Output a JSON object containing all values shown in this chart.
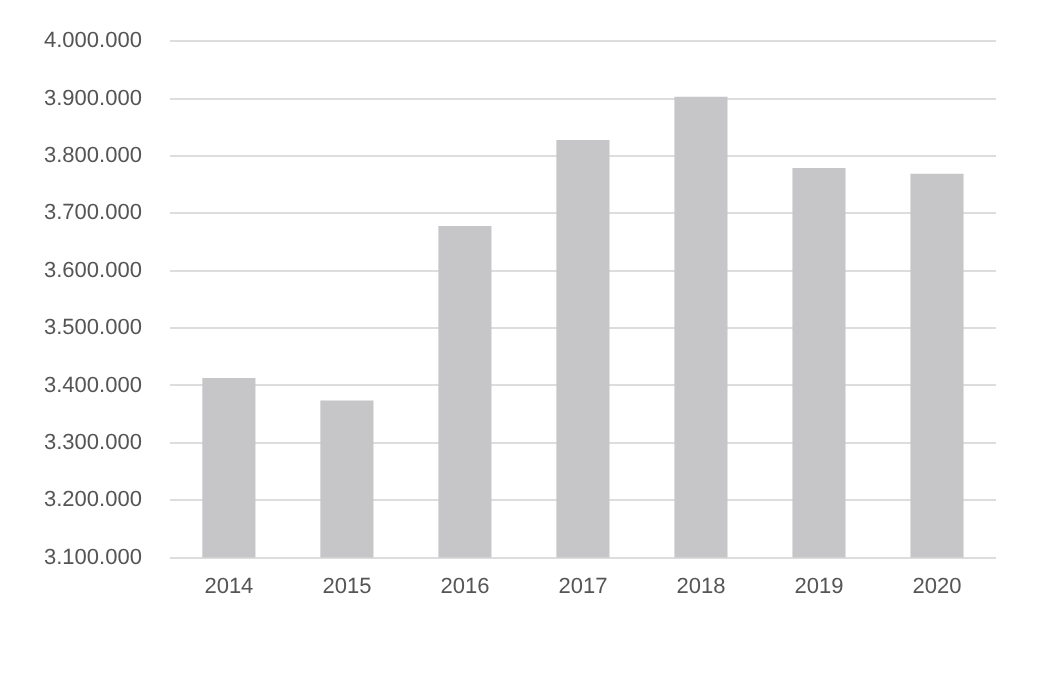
{
  "chart_data": {
    "type": "bar",
    "categories": [
      "2014",
      "2015",
      "2016",
      "2017",
      "2018",
      "2019",
      "2020"
    ],
    "values": [
      3413000,
      3374000,
      3678000,
      3828000,
      3903000,
      3779000,
      3769000
    ],
    "color": "#c6c6c8",
    "ylim": [
      3100000,
      4000000
    ],
    "yticks": [
      {
        "value": 3100000,
        "label": "3.100.000"
      },
      {
        "value": 3200000,
        "label": "3.200.000"
      },
      {
        "value": 3300000,
        "label": "3.300.000"
      },
      {
        "value": 3400000,
        "label": "3.400.000"
      },
      {
        "value": 3500000,
        "label": "3.500.000"
      },
      {
        "value": 3600000,
        "label": "3.600.000"
      },
      {
        "value": 3700000,
        "label": "3.700.000"
      },
      {
        "value": 3800000,
        "label": "3.800.000"
      },
      {
        "value": 3900000,
        "label": "3.900.000"
      },
      {
        "value": 4000000,
        "label": "4.000.000"
      }
    ],
    "grid": "y"
  }
}
